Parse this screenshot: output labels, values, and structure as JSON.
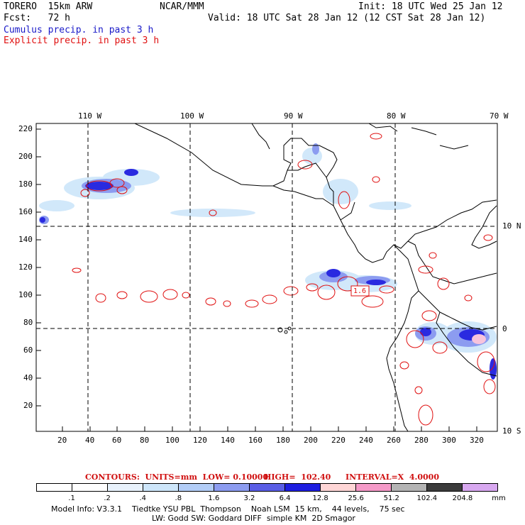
{
  "header": {
    "model": "TORERO  15km ARW",
    "org": "NCAR/MMM",
    "init": "Init: 18 UTC Wed 25 Jan 12",
    "fcst": "Fcst:   72 h",
    "valid": "Valid: 18 UTC Sat 28 Jan 12 (12 CST Sat 28 Jan 12)",
    "field1": "Cumulus precip. in past 3 h",
    "field2": "Explicit precip. in past 3 h"
  },
  "map": {
    "top_lon_labels": [
      "110 W",
      "100 W",
      "90 W",
      "80 W",
      "70 W"
    ],
    "right_lat_labels": [
      "10 N",
      "0",
      "10 S"
    ],
    "y_ticks": [
      "220",
      "200",
      "180",
      "160",
      "140",
      "120",
      "100",
      "80",
      "60",
      "40",
      "20"
    ],
    "x_ticks": [
      "20",
      "40",
      "60",
      "80",
      "100",
      "120",
      "140",
      "160",
      "180",
      "200",
      "220",
      "240",
      "260",
      "280",
      "300",
      "320"
    ],
    "box_label": "1.6"
  },
  "contours": {
    "units_label": "CONTOURS:  UNITS=mm  LOW= 0.10000",
    "high_label": "HIGH=  102.40",
    "interval_label": "INTERVAL=X  4.0000"
  },
  "colorbar": {
    "labels": [
      ".1",
      ".2",
      ".4",
      ".8",
      "1.6",
      "3.2",
      "6.4",
      "12.8",
      "25.6",
      "51.2",
      "102.4",
      "204.8"
    ],
    "units": "mm",
    "colors": [
      "#ffffff",
      "#ffffff",
      "#e8f2fc",
      "#cde6fa",
      "#b2cdf7",
      "#8c9cf0",
      "#5a5ee6",
      "#1e1ee0",
      "#ffd6d6",
      "#f59ac8",
      "#b4b4b4",
      "#3c3c3c",
      "#d8a8f0"
    ]
  },
  "footer": {
    "line1": "Model Info: V3.3.1    Tiedtke YSU PBL  Thompson    Noah LSM  15 km,    44 levels,    75 sec",
    "line2": "LW: Godd SW: Goddard DIFF  simple KM  2D Smagor"
  }
}
